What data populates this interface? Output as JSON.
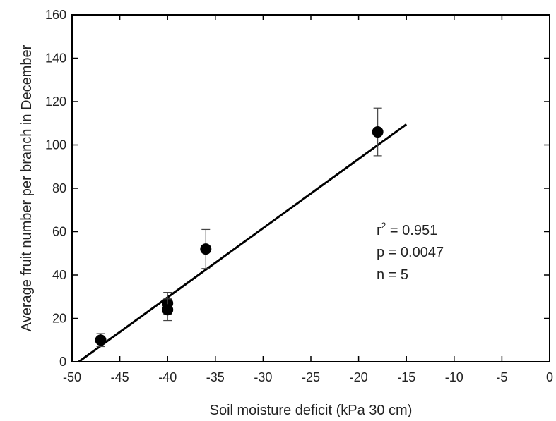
{
  "chart_data": {
    "type": "scatter",
    "xlabel": "Soil moisture deficit (kPa 30 cm)",
    "ylabel": "Average fruit number per branch in December",
    "xlim": [
      -50,
      0
    ],
    "ylim": [
      0,
      160
    ],
    "xticks": [
      -50,
      -45,
      -40,
      -35,
      -30,
      -25,
      -20,
      -15,
      -10,
      -5,
      0
    ],
    "yticks": [
      0,
      20,
      40,
      60,
      80,
      100,
      120,
      140,
      160
    ],
    "grid": false,
    "points": [
      {
        "x": -47,
        "y": 10,
        "err": 3
      },
      {
        "x": -40,
        "y": 27,
        "err": 5
      },
      {
        "x": -40,
        "y": 24,
        "err": 5
      },
      {
        "x": -36,
        "y": 52,
        "err": 9
      },
      {
        "x": -18,
        "y": 106,
        "err": 11
      }
    ],
    "fit_line": {
      "x": [
        -49.3,
        -15
      ],
      "y": [
        0,
        109.5
      ]
    },
    "annotations": {
      "r2_prefix": "r",
      "r2_exp": "2",
      "r2_value": " = 0.951",
      "p": "p = 0.0047",
      "n": "n = 5"
    },
    "marker_color": "#000000"
  }
}
